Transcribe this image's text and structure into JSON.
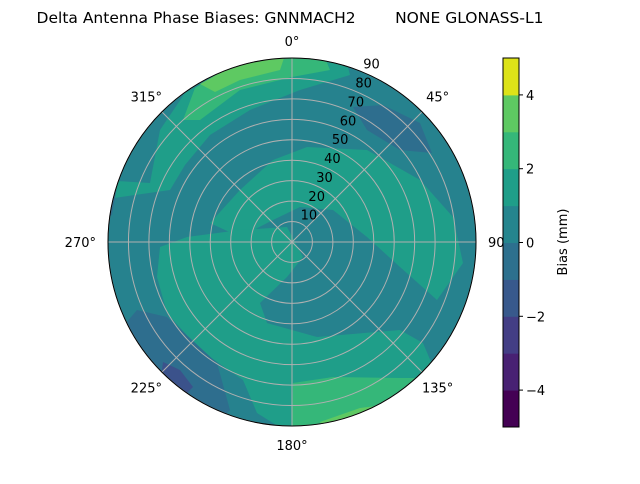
{
  "chart_data": {
    "type": "heatmap",
    "subtype": "polar-filled-contour",
    "title": "Delta Antenna Phase Biases: GNNMACH2        NONE GLONASS-L1",
    "angular_ticks": [
      "0°",
      "45°",
      "90°",
      "135°",
      "180°",
      "225°",
      "270°",
      "315°"
    ],
    "angular_direction": "clockwise, 0° at top",
    "radial_ticks": [
      "10",
      "20",
      "30",
      "40",
      "50",
      "60",
      "70",
      "80",
      "90"
    ],
    "radial_range": [
      0,
      90
    ],
    "grid": true,
    "colormap": "viridis",
    "levels": [
      -5,
      -4,
      -3,
      -2,
      -1,
      0,
      1,
      2,
      3,
      4,
      5
    ],
    "level_colors": [
      "#440154",
      "#482173",
      "#433e85",
      "#38598c",
      "#2d708e",
      "#25858e",
      "#1f9e89",
      "#35b779",
      "#5ec962",
      "#dde318"
    ],
    "colorbar": {
      "label": "Bias (mm)",
      "ticks": [
        "4",
        "2",
        "0",
        "−2",
        "−4"
      ],
      "tick_values": [
        4,
        2,
        0,
        -2,
        -4
      ],
      "range": [
        -5,
        5
      ],
      "placement": "right"
    },
    "regions_summary": {
      "dominant_level": "0 to 1 mm",
      "max_region": "3 to 4 mm near 330°/90 and 165°/90",
      "min_region": "-3 to -2 mm near 225°/85"
    }
  }
}
